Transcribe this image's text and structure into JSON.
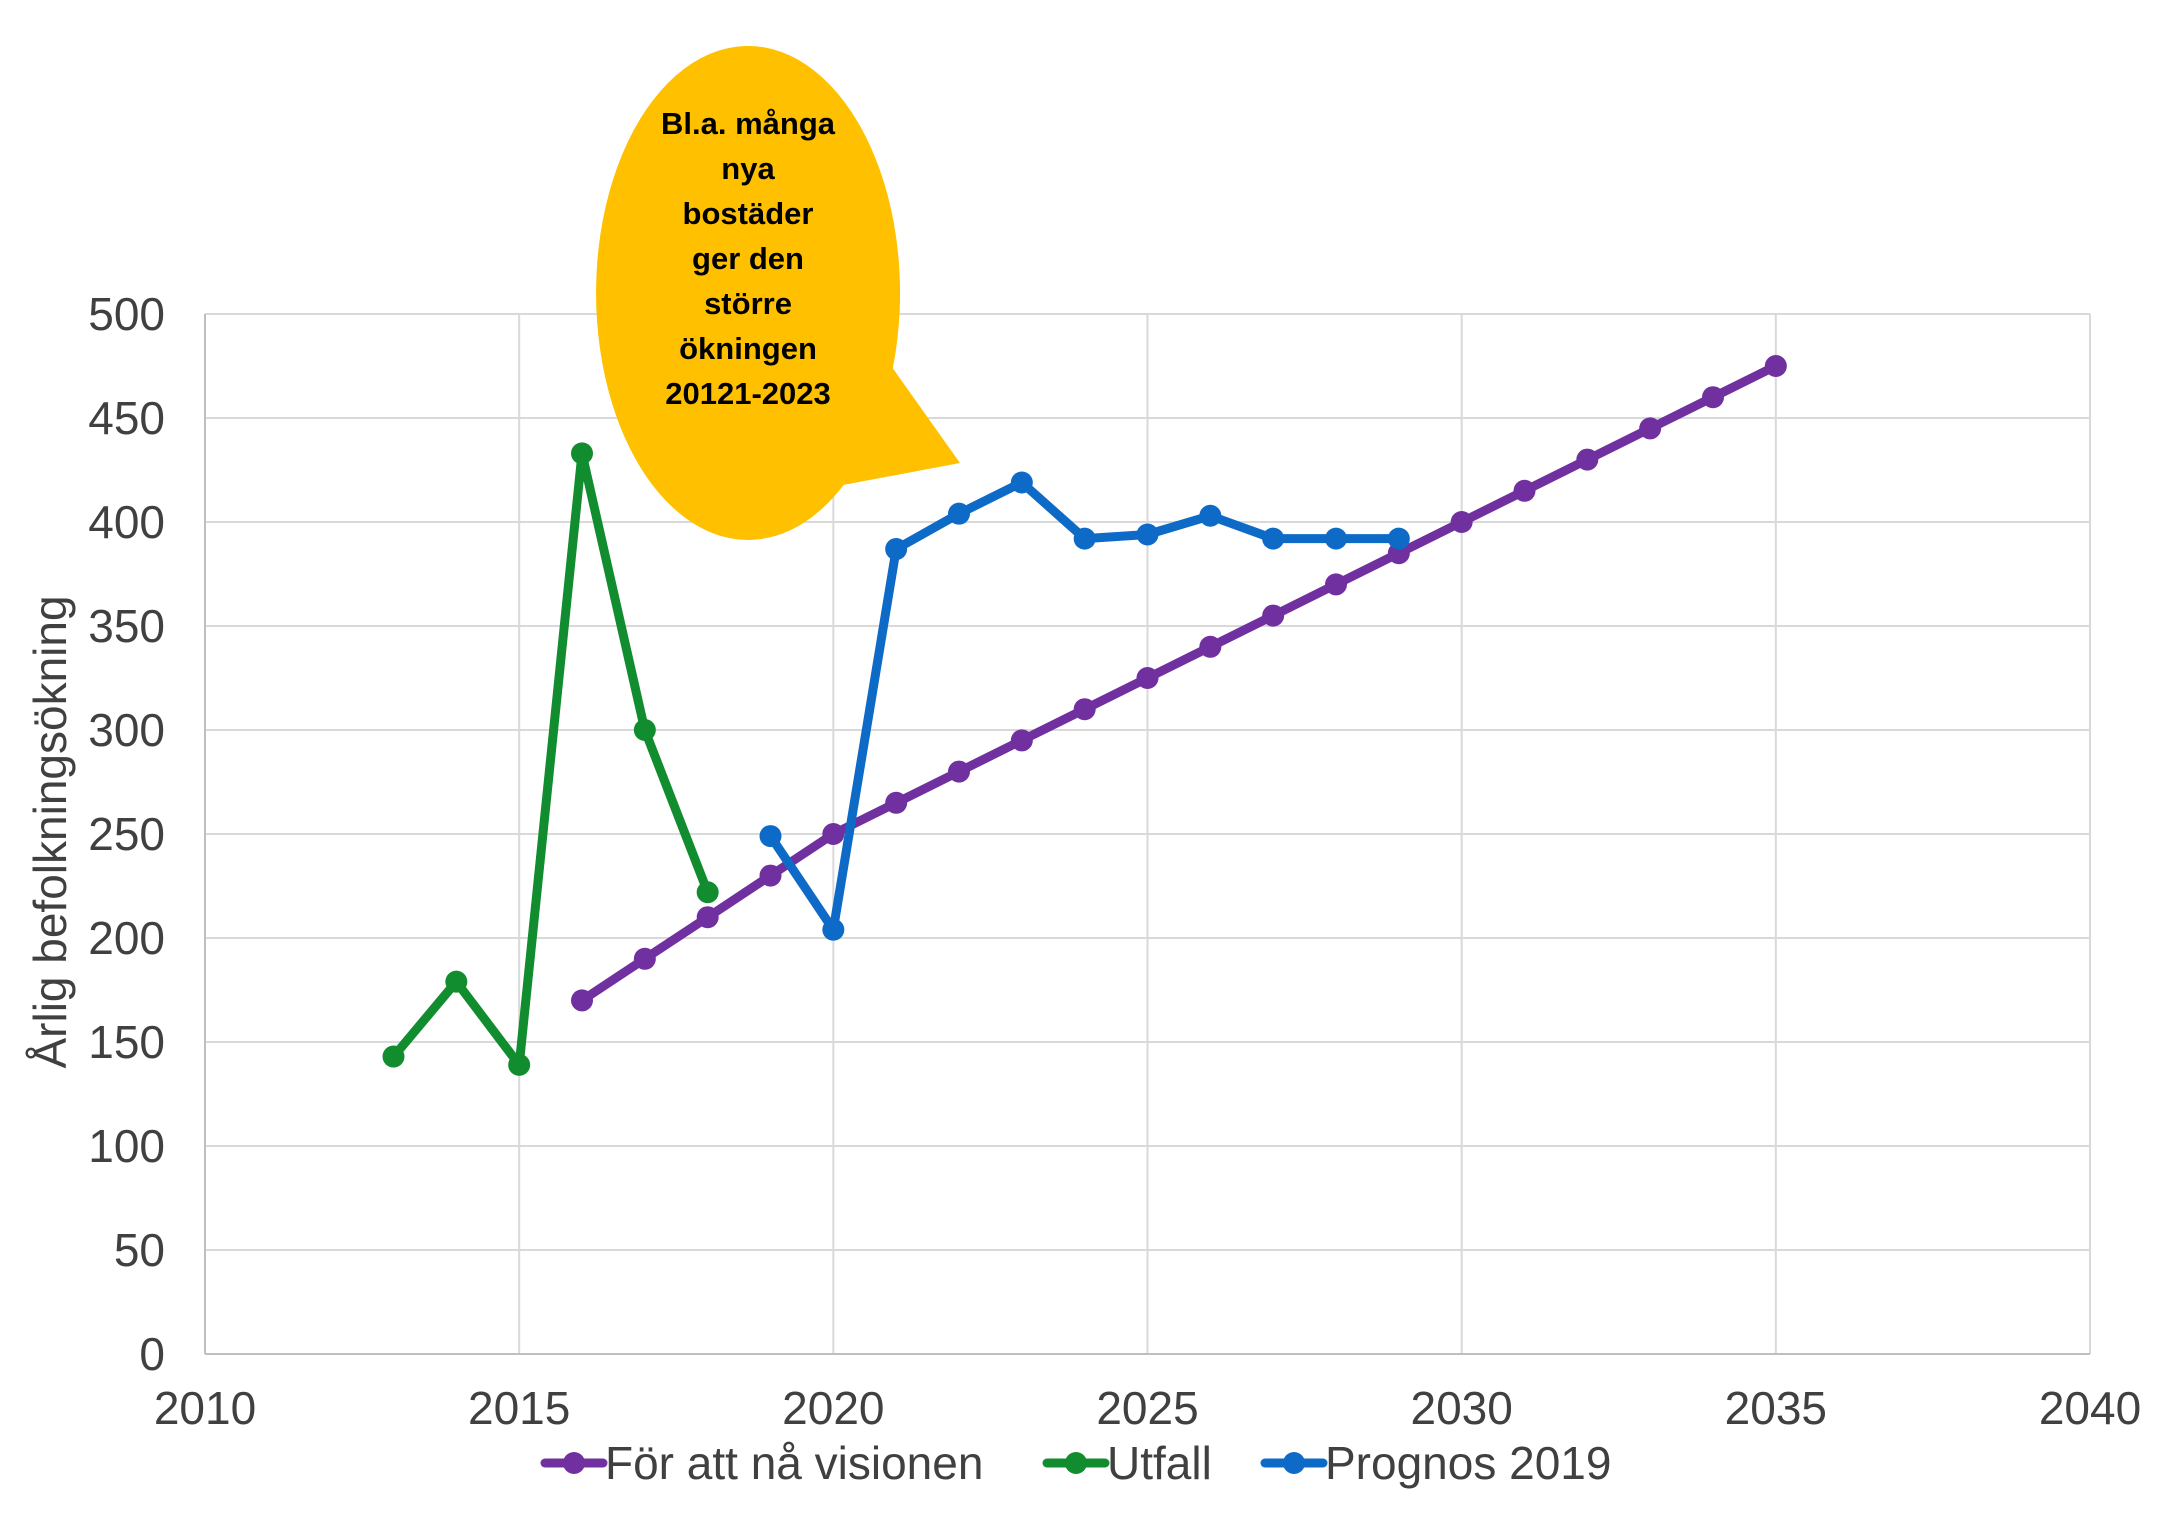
{
  "chart_data": {
    "type": "line",
    "ylabel": "Årlig befolkningsökning",
    "xlim": [
      2010,
      2040
    ],
    "ylim": [
      0,
      500
    ],
    "x_ticks": [
      2010,
      2015,
      2020,
      2025,
      2030,
      2035,
      2040
    ],
    "y_ticks": [
      0,
      50,
      100,
      150,
      200,
      250,
      300,
      350,
      400,
      450,
      500
    ],
    "grid": true,
    "legend_position": "bottom",
    "series": [
      {
        "name": "För att nå visionen",
        "color": "#7030A0",
        "points": [
          [
            2016,
            170
          ],
          [
            2017,
            190
          ],
          [
            2018,
            210
          ],
          [
            2019,
            230
          ],
          [
            2020,
            250
          ],
          [
            2021,
            265
          ],
          [
            2022,
            280
          ],
          [
            2023,
            295
          ],
          [
            2024,
            310
          ],
          [
            2025,
            325
          ],
          [
            2026,
            340
          ],
          [
            2027,
            355
          ],
          [
            2028,
            370
          ],
          [
            2029,
            385
          ],
          [
            2030,
            400
          ],
          [
            2031,
            415
          ],
          [
            2032,
            430
          ],
          [
            2033,
            445
          ],
          [
            2034,
            460
          ],
          [
            2035,
            475
          ]
        ]
      },
      {
        "name": "Utfall",
        "color": "#118C2E",
        "points": [
          [
            2013,
            143
          ],
          [
            2014,
            179
          ],
          [
            2015,
            139
          ],
          [
            2016,
            433
          ],
          [
            2017,
            300
          ],
          [
            2018,
            222
          ]
        ]
      },
      {
        "name": "Prognos 2019",
        "color": "#0E6AC7",
        "points": [
          [
            2019,
            249
          ],
          [
            2020,
            204
          ],
          [
            2021,
            387
          ],
          [
            2022,
            404
          ],
          [
            2023,
            419
          ],
          [
            2024,
            392
          ],
          [
            2025,
            394
          ],
          [
            2026,
            403
          ],
          [
            2027,
            392
          ],
          [
            2028,
            392
          ],
          [
            2029,
            392
          ]
        ]
      }
    ],
    "annotation": {
      "lines": [
        "Bl.a. många",
        "nya",
        "bostäder",
        "ger den",
        "större",
        "ökningen",
        "20121-2023"
      ],
      "color": "#FFC000"
    }
  }
}
